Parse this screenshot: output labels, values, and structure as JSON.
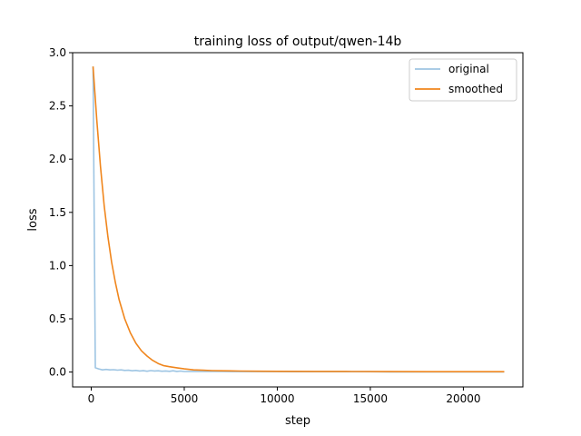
{
  "chart_data": {
    "type": "line",
    "title": "training loss of output/qwen-14b",
    "xlabel": "step",
    "ylabel": "loss",
    "xlim": [
      -1000,
      23200
    ],
    "ylim": [
      -0.14,
      3.0
    ],
    "xticks": [
      0,
      5000,
      10000,
      15000,
      20000
    ],
    "xtick_labels": [
      "0",
      "5000",
      "10000",
      "15000",
      "20000"
    ],
    "yticks": [
      0.0,
      0.5,
      1.0,
      1.5,
      2.0,
      2.5,
      3.0
    ],
    "ytick_labels": [
      "0.0",
      "0.5",
      "1.0",
      "1.5",
      "2.0",
      "2.5",
      "3.0"
    ],
    "grid": false,
    "legend": "top-right",
    "series": [
      {
        "name": "original",
        "color": "#9ec5e3",
        "x": [
          100,
          220,
          400,
          600,
          800,
          1000,
          1200,
          1400,
          1600,
          1800,
          2000,
          2200,
          2400,
          2600,
          2800,
          3000,
          3200,
          3400,
          3600,
          3800,
          4000,
          4200,
          4400,
          4600,
          4800,
          5000,
          5500,
          6000,
          7000,
          8000,
          9000,
          10000,
          11000,
          12000,
          13000,
          14000,
          15000,
          16000,
          17000,
          18000,
          19000,
          20000,
          21000,
          22200
        ],
        "y": [
          2.87,
          0.04,
          0.03,
          0.02,
          0.025,
          0.02,
          0.022,
          0.018,
          0.02,
          0.015,
          0.017,
          0.012,
          0.015,
          0.01,
          0.013,
          0.008,
          0.014,
          0.01,
          0.012,
          0.008,
          0.01,
          0.007,
          0.012,
          0.006,
          0.009,
          0.005,
          0.006,
          0.005,
          0.005,
          0.004,
          0.004,
          0.004,
          0.003,
          0.003,
          0.003,
          0.003,
          0.003,
          0.002,
          0.002,
          0.002,
          0.002,
          0.002,
          0.002,
          0.002
        ]
      },
      {
        "name": "smoothed",
        "color": "#f0861d",
        "x": [
          100,
          300,
          500,
          700,
          900,
          1100,
          1300,
          1500,
          1800,
          2100,
          2400,
          2700,
          3000,
          3300,
          3600,
          3900,
          4200,
          4600,
          5000,
          5500,
          6000,
          6500,
          7000,
          8000,
          9000,
          10000,
          12000,
          14000,
          16000,
          18000,
          20000,
          22200
        ],
        "y": [
          2.87,
          2.37,
          1.93,
          1.56,
          1.27,
          1.03,
          0.84,
          0.68,
          0.5,
          0.37,
          0.27,
          0.2,
          0.15,
          0.11,
          0.08,
          0.06,
          0.05,
          0.04,
          0.03,
          0.02,
          0.017,
          0.014,
          0.012,
          0.009,
          0.008,
          0.007,
          0.006,
          0.005,
          0.004,
          0.003,
          0.003,
          0.003
        ]
      }
    ]
  }
}
